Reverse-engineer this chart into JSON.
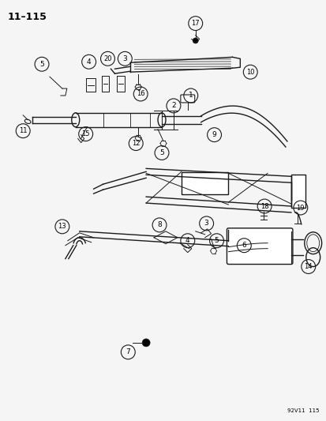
{
  "page_id": "11–115",
  "footer_code": "92V11  115",
  "background_color": "#f5f5f5",
  "line_color": "#1a1a1a",
  "figsize": [
    4.14,
    5.33
  ],
  "dpi": 100
}
